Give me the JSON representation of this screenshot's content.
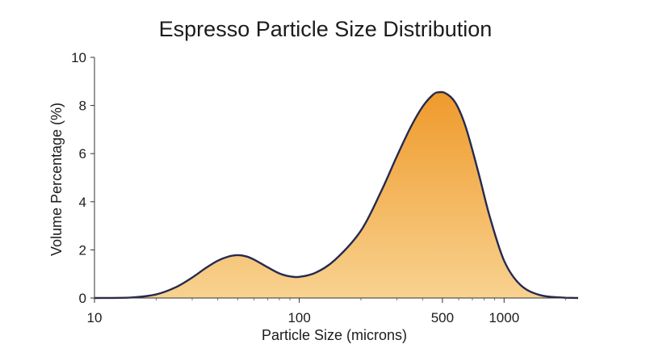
{
  "chart_data": {
    "type": "area",
    "title": "Espresso Particle Size Distribution",
    "xlabel": "Particle Size (microns)",
    "ylabel": "Volume Percentage (%)",
    "x_scale": "log",
    "xlim": [
      10,
      2300
    ],
    "ylim": [
      0,
      10
    ],
    "x_ticks": [
      10,
      100,
      500,
      1000
    ],
    "x_tick_labels": [
      "10",
      "100",
      "500",
      "1000"
    ],
    "y_ticks": [
      0,
      2,
      4,
      6,
      8,
      10
    ],
    "y_tick_labels": [
      "0",
      "2",
      "4",
      "6",
      "8",
      "10"
    ],
    "grid": false,
    "series": [
      {
        "x": [
          10,
          15,
          20,
          25,
          30,
          35,
          40,
          45,
          50,
          55,
          60,
          70,
          80,
          90,
          100,
          120,
          150,
          200,
          250,
          300,
          350,
          400,
          450,
          480,
          520,
          580,
          650,
          750,
          850,
          1000,
          1200,
          1500,
          2000,
          2300
        ],
        "y": [
          0.0,
          0.02,
          0.15,
          0.45,
          0.85,
          1.25,
          1.55,
          1.72,
          1.78,
          1.73,
          1.6,
          1.28,
          1.02,
          0.9,
          0.88,
          1.05,
          1.6,
          2.8,
          4.4,
          5.9,
          7.1,
          7.95,
          8.45,
          8.55,
          8.5,
          8.1,
          7.1,
          5.2,
          3.4,
          1.55,
          0.55,
          0.12,
          0.01,
          0.0
        ]
      }
    ],
    "fill_colors": [
      "#ef9a2b",
      "#f8d290"
    ],
    "line_color": "#262a4f"
  }
}
